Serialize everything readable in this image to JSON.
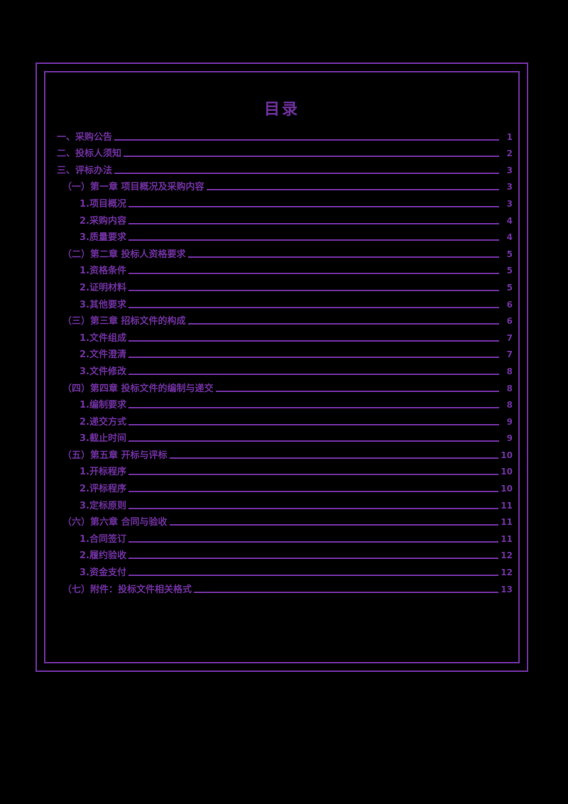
{
  "colors": {
    "accent": "#7030A0",
    "background": "#000000"
  },
  "document": {
    "title": "目录",
    "entries": [
      {
        "level": 1,
        "label": "一、采购公告",
        "page": "1"
      },
      {
        "level": 1,
        "label": "二、投标人须知",
        "page": "2"
      },
      {
        "level": 1,
        "label": "三、评标办法",
        "page": "3"
      },
      {
        "level": 2,
        "label": "（一）第一章 项目概况及采购内容",
        "page": "3"
      },
      {
        "level": 3,
        "label": "1.项目概况",
        "page": "3"
      },
      {
        "level": 3,
        "label": "2.采购内容",
        "page": "4"
      },
      {
        "level": 3,
        "label": "3.质量要求",
        "page": "4"
      },
      {
        "level": 2,
        "label": "（二）第二章 投标人资格要求",
        "page": "5"
      },
      {
        "level": 3,
        "label": "1.资格条件",
        "page": "5"
      },
      {
        "level": 3,
        "label": "2.证明材料",
        "page": "5"
      },
      {
        "level": 3,
        "label": "3.其他要求",
        "page": "6"
      },
      {
        "level": 2,
        "label": "（三）第三章 招标文件的构成",
        "page": "6"
      },
      {
        "level": 3,
        "label": "1.文件组成",
        "page": "7"
      },
      {
        "level": 3,
        "label": "2.文件澄清",
        "page": "7"
      },
      {
        "level": 3,
        "label": "3.文件修改",
        "page": "8"
      },
      {
        "level": 2,
        "label": "（四）第四章 投标文件的编制与递交",
        "page": "8"
      },
      {
        "level": 3,
        "label": "1.编制要求",
        "page": "8"
      },
      {
        "level": 3,
        "label": "2.递交方式",
        "page": "9"
      },
      {
        "level": 3,
        "label": "3.截止时间",
        "page": "9"
      },
      {
        "level": 2,
        "label": "（五）第五章 开标与评标",
        "page": "10"
      },
      {
        "level": 3,
        "label": "1.开标程序",
        "page": "10"
      },
      {
        "level": 3,
        "label": "2.评标程序",
        "page": "10"
      },
      {
        "level": 3,
        "label": "3.定标原则",
        "page": "11"
      },
      {
        "level": 2,
        "label": "（六）第六章 合同与验收",
        "page": "11"
      },
      {
        "level": 3,
        "label": "1.合同签订",
        "page": "11"
      },
      {
        "level": 3,
        "label": "2.履约验收",
        "page": "12"
      },
      {
        "level": 3,
        "label": "3.资金支付",
        "page": "12"
      },
      {
        "level": 2,
        "label": "（七）附件：投标文件相关格式",
        "page": "13"
      }
    ]
  }
}
